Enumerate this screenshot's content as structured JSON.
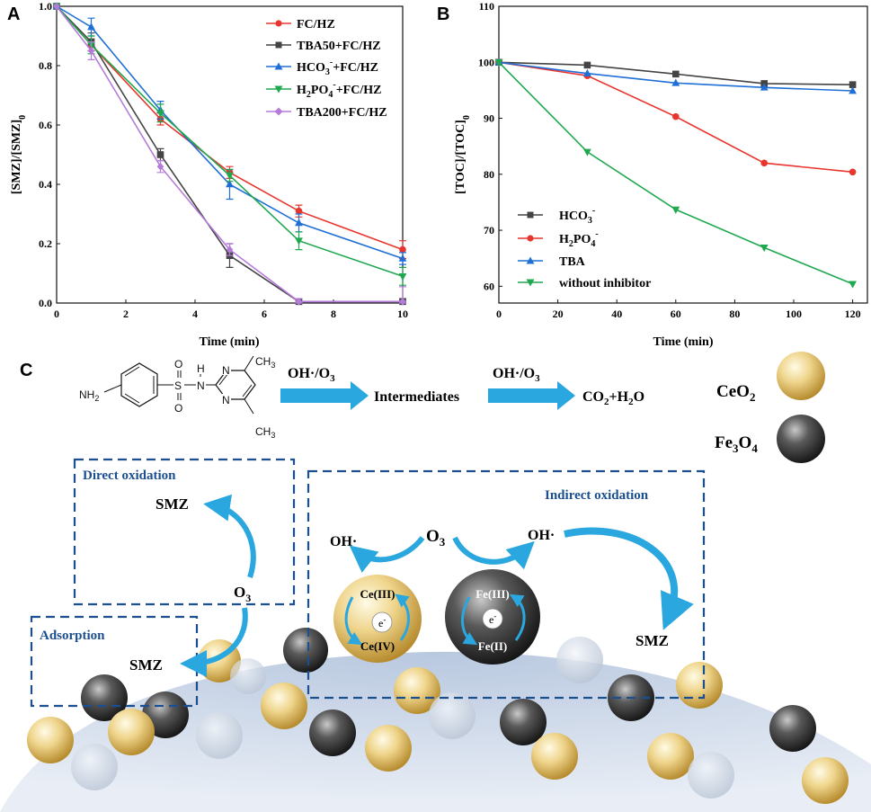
{
  "panels": {
    "a": "A",
    "b": "B",
    "c": "C"
  },
  "chart_data": [
    {
      "type": "line",
      "panel": "A",
      "xlabel": "Time (min)",
      "ylabel": "[SMZ]/[SMZ]",
      "ylabel_sub": "0",
      "xlim": [
        0,
        10
      ],
      "ylim": [
        0,
        1.0
      ],
      "xticks": [
        0,
        2,
        4,
        6,
        8,
        10
      ],
      "yticks": [
        0.0,
        0.2,
        0.4,
        0.6,
        0.8,
        1.0
      ],
      "ytick_labels": [
        "0.0",
        "0.2",
        "0.4",
        "0.6",
        "0.8",
        "1.0"
      ],
      "legend_position": "top-right",
      "series": [
        {
          "name": "FC/HZ",
          "color": "#e8362e",
          "marker": "circle",
          "x": [
            0,
            1,
            3,
            5,
            7,
            10
          ],
          "y": [
            1.0,
            0.87,
            0.62,
            0.44,
            0.31,
            0.18
          ],
          "err": [
            0,
            0.02,
            0.02,
            0.02,
            0.02,
            0.03
          ]
        },
        {
          "name": "TBA50+FC/HZ",
          "color": "#444444",
          "marker": "square",
          "x": [
            0,
            1,
            3,
            5,
            7,
            10
          ],
          "y": [
            1.0,
            0.88,
            0.5,
            0.16,
            0.005,
            0.005
          ],
          "err": [
            0,
            0.03,
            0.02,
            0.04,
            0.01,
            0.01
          ]
        },
        {
          "name": "HCO3-+FC/HZ",
          "color": "#1f6fd6",
          "marker": "triangle",
          "x": [
            0,
            1,
            3,
            5,
            7,
            10
          ],
          "y": [
            1.0,
            0.93,
            0.65,
            0.4,
            0.27,
            0.15
          ],
          "err": [
            0,
            0.03,
            0.03,
            0.05,
            0.03,
            0.02
          ]
        },
        {
          "name": "H2PO4-+FC/HZ",
          "color": "#1fa84f",
          "marker": "triangle-down",
          "x": [
            0,
            1,
            3,
            5,
            7,
            10
          ],
          "y": [
            1.0,
            0.87,
            0.64,
            0.43,
            0.21,
            0.09
          ],
          "err": [
            0,
            0.03,
            0.03,
            0.02,
            0.03,
            0.03
          ]
        },
        {
          "name": "TBA200+FC/HZ",
          "color": "#b57bdb",
          "marker": "diamond",
          "x": [
            0,
            1,
            3,
            5,
            7,
            10
          ],
          "y": [
            1.0,
            0.85,
            0.46,
            0.18,
            0.005,
            0.005
          ],
          "err": [
            0,
            0.03,
            0.02,
            0.02,
            0.01,
            0.05
          ]
        }
      ],
      "legend": [
        {
          "text": "FC/HZ",
          "sub": "",
          "sup": "",
          "rest": ""
        },
        {
          "text": "TBA50+FC/HZ",
          "sub": "",
          "sup": "",
          "rest": ""
        },
        {
          "text": "HCO",
          "sub": "3",
          "sup": "-",
          "rest": "+FC/HZ"
        },
        {
          "text": "H",
          "sub": "2",
          "sup": "",
          "rest": "PO",
          "sub2": "4",
          "sup2": "-",
          "rest2": "+FC/HZ"
        },
        {
          "text": "TBA200+FC/HZ",
          "sub": "",
          "sup": "",
          "rest": ""
        }
      ]
    },
    {
      "type": "line",
      "panel": "B",
      "xlabel": "Time (min)",
      "ylabel": "[TOC]/[TOC]",
      "ylabel_sub": "0",
      "xlim": [
        0,
        125
      ],
      "ylim": [
        57,
        110
      ],
      "xticks": [
        0,
        20,
        40,
        60,
        80,
        100,
        120
      ],
      "yticks": [
        60,
        70,
        80,
        90,
        100,
        110
      ],
      "legend_position": "bottom-left",
      "series": [
        {
          "name": "HCO3-",
          "color": "#444444",
          "marker": "square",
          "x": [
            0,
            30,
            60,
            90,
            120
          ],
          "y": [
            100,
            99.5,
            97.9,
            96.2,
            96.0
          ]
        },
        {
          "name": "H2PO4-",
          "color": "#e8362e",
          "marker": "circle",
          "x": [
            0,
            30,
            60,
            90,
            120
          ],
          "y": [
            100,
            97.6,
            90.3,
            82.0,
            80.4
          ]
        },
        {
          "name": "TBA",
          "color": "#1f6fd6",
          "marker": "triangle",
          "x": [
            0,
            30,
            60,
            90,
            120
          ],
          "y": [
            100,
            98.0,
            96.3,
            95.5,
            94.9
          ]
        },
        {
          "name": "without inhibitor",
          "color": "#1fa84f",
          "marker": "triangle-down",
          "x": [
            0,
            30,
            60,
            90,
            120
          ],
          "y": [
            100,
            84.0,
            73.7,
            66.9,
            60.4
          ]
        }
      ],
      "legend": [
        {
          "text": "HCO",
          "sub": "3",
          "sup": "-"
        },
        {
          "text": "H",
          "sub": "2",
          "mid": "PO",
          "sub2": "4",
          "sup": "-"
        },
        {
          "text": "TBA"
        },
        {
          "text": "without inhibitor"
        }
      ]
    }
  ],
  "scheme": {
    "reaction": {
      "oxidant": "OH·/O",
      "oxidant_sub": "3",
      "intermediates": "Intermediates",
      "product_co": "CO",
      "product_sub": "2",
      "product_rest": "+H",
      "product_sub2": "2",
      "product_end": "O"
    },
    "molecule": {
      "nh2": "NH",
      "nh2_sub": "2",
      "s": "S",
      "o1": "O",
      "o2": "O",
      "nh": "N",
      "h": "H",
      "n1": "N",
      "n2": "N",
      "ch3a": "CH",
      "ch3b": "CH",
      "three": "3"
    },
    "legend": {
      "ceo2": "CeO",
      "ceo2_sub": "2",
      "fe3o4_a": "Fe",
      "fe3o4_sub1": "3",
      "fe3o4_b": "O",
      "fe3o4_sub2": "4"
    },
    "boxes": {
      "direct": "Direct oxidation",
      "adsorption": "Adsorption",
      "indirect": "Indirect oxidation"
    },
    "labels": {
      "smz": "SMZ",
      "o3": "O",
      "o3_sub": "3",
      "oh": "OH·",
      "ce3": "Ce(III)",
      "ce4": "Ce(IV)",
      "fe3": "Fe(III)",
      "fe2": "Fe(II)",
      "electron": "e",
      "electron_sup": "-"
    },
    "colors": {
      "box": "#1c4f8f",
      "arrow": "#2aa7de",
      "ceo2": "#e9cd82",
      "fe3o4": "#3c3c3c",
      "support": "#c9d6e8"
    }
  }
}
